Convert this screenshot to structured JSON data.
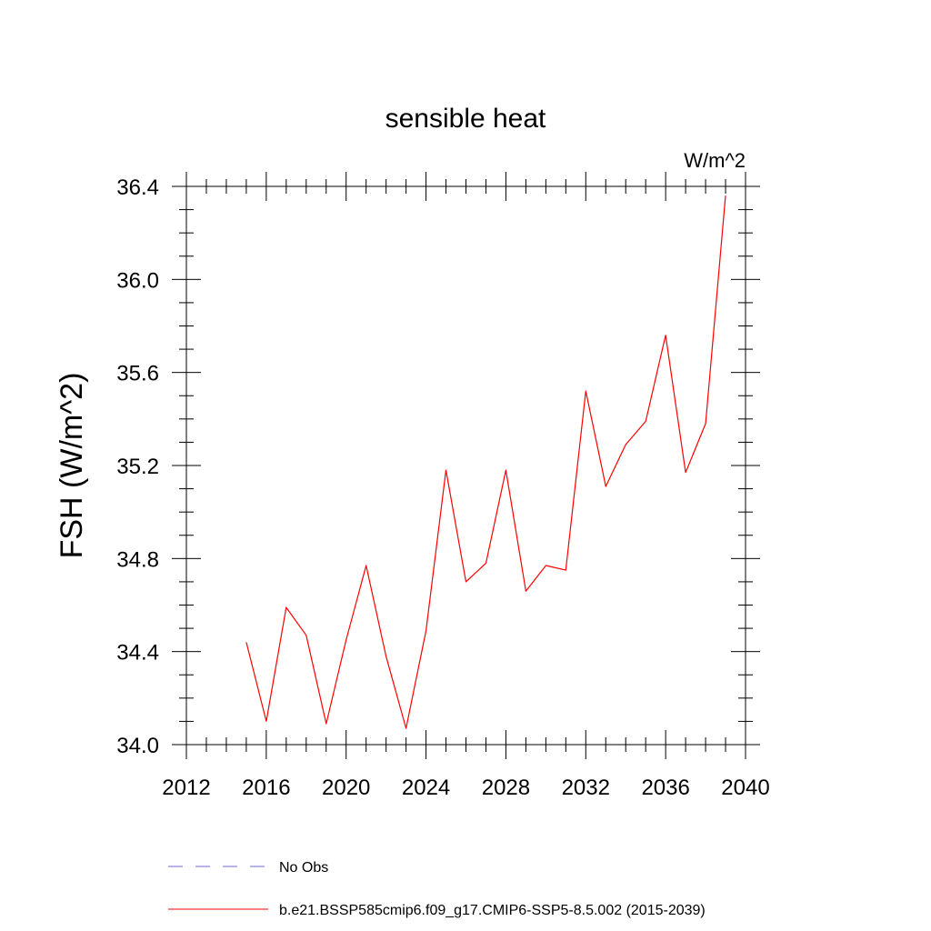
{
  "chart_data": {
    "type": "line",
    "title": "sensible heat",
    "units_label": "W/m^2",
    "ylabel": "FSH  (W/m^2)",
    "xlabel": "",
    "xlim": [
      2012,
      2040
    ],
    "ylim": [
      34.0,
      36.4
    ],
    "x_ticks": [
      2012,
      2016,
      2020,
      2024,
      2028,
      2032,
      2036,
      2040
    ],
    "y_ticks": [
      "34.0",
      "34.4",
      "34.8",
      "35.2",
      "35.6",
      "36.0",
      "36.4"
    ],
    "grid": false,
    "legend_placement": "bottom",
    "series": [
      {
        "name": "b.e21.BSSP585cmip6.f09_g17.CMIP6-SSP5-8.5.002 (2015-2039)",
        "color": "#ff0000",
        "line_style": "solid",
        "x": [
          2015,
          2016,
          2017,
          2018,
          2019,
          2020,
          2021,
          2022,
          2023,
          2024,
          2025,
          2026,
          2027,
          2028,
          2029,
          2030,
          2031,
          2032,
          2033,
          2034,
          2035,
          2036,
          2037,
          2038,
          2039
        ],
        "values": [
          34.44,
          34.1,
          34.59,
          34.47,
          34.09,
          34.45,
          34.77,
          34.38,
          34.07,
          34.49,
          35.18,
          34.7,
          34.78,
          35.18,
          34.66,
          34.77,
          34.75,
          35.52,
          35.11,
          35.29,
          35.39,
          35.76,
          35.17,
          35.38,
          36.36
        ]
      }
    ],
    "legend": [
      {
        "label": "No Obs",
        "color": "#6a6ad0",
        "line_style": "dashed"
      },
      {
        "label": "b.e21.BSSP585cmip6.f09_g17.CMIP6-SSP5-8.5.002 (2015-2039)",
        "color": "#ff0000",
        "line_style": "solid"
      }
    ]
  }
}
